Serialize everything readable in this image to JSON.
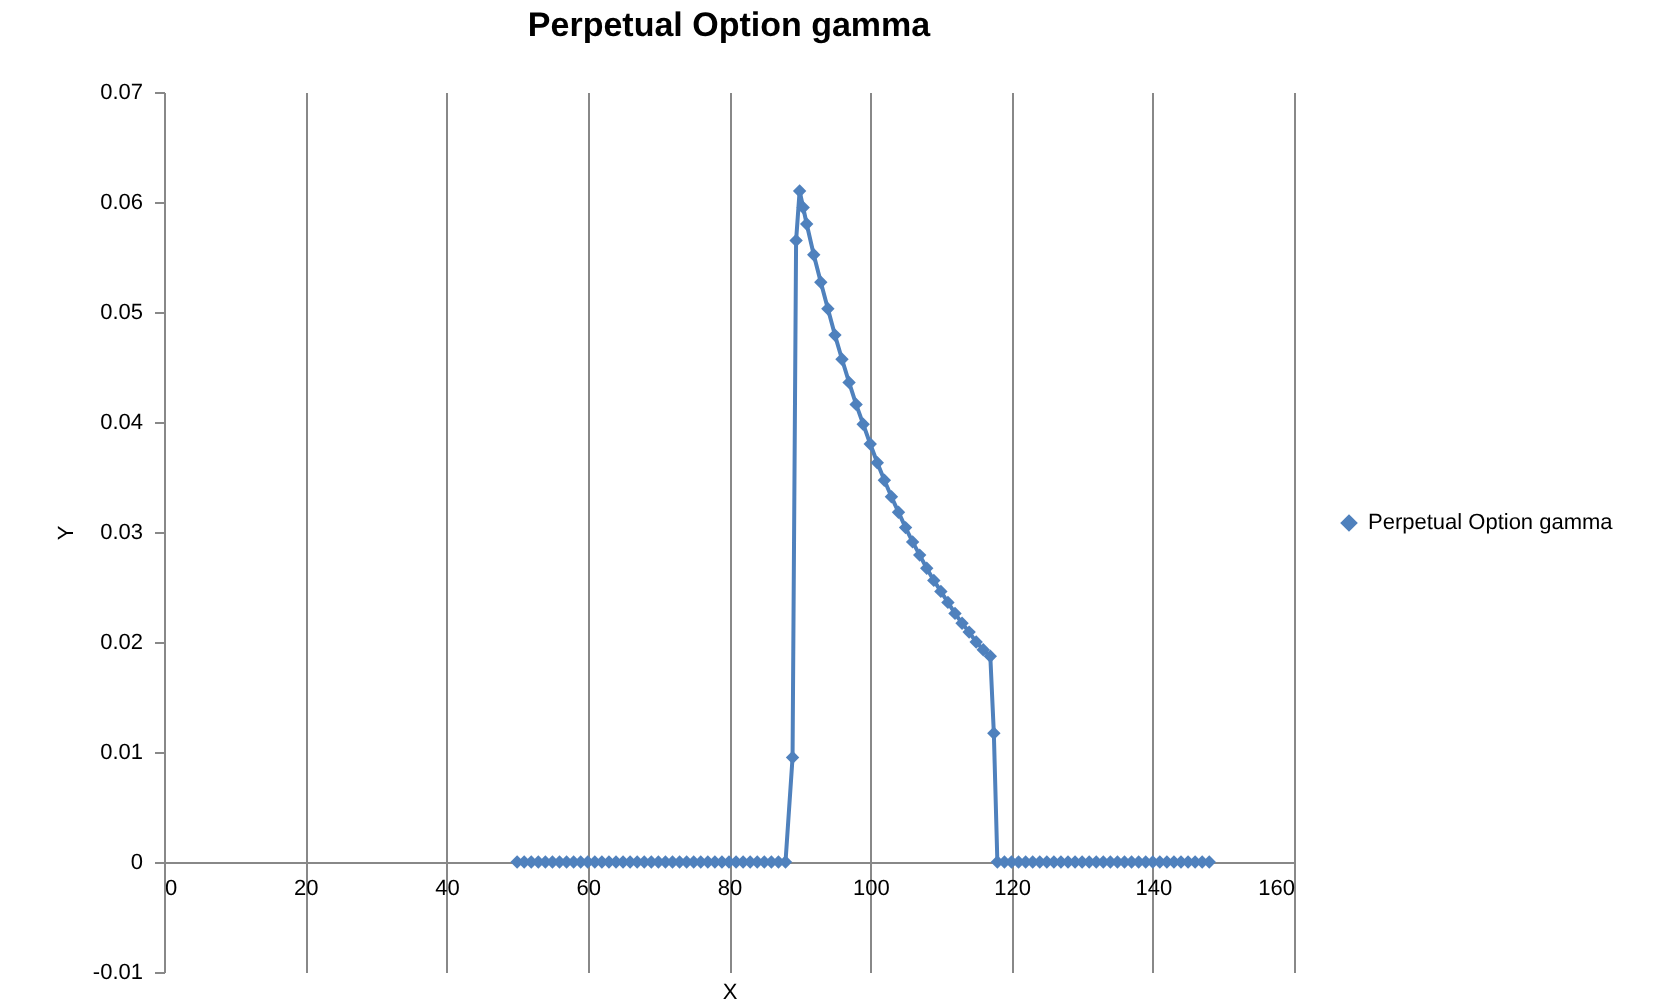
{
  "chart_data": {
    "type": "line",
    "title": "Perpetual Option gamma",
    "xlabel": "X",
    "ylabel": "Y",
    "x": [
      50,
      51,
      52,
      53,
      54,
      55,
      56,
      57,
      58,
      59,
      60,
      61,
      62,
      63,
      64,
      65,
      66,
      67,
      68,
      69,
      70,
      71,
      72,
      73,
      74,
      75,
      76,
      77,
      78,
      79,
      80,
      81,
      82,
      83,
      84,
      85,
      86,
      87,
      88,
      89,
      89.5,
      90,
      90.5,
      91,
      92,
      93,
      94,
      95,
      96,
      97,
      98,
      99,
      100,
      101,
      102,
      103,
      104,
      105,
      106,
      107,
      108,
      109,
      110,
      111,
      112,
      113,
      114,
      115,
      116,
      117,
      117.5,
      118,
      119,
      120,
      121,
      122,
      123,
      124,
      125,
      126,
      127,
      128,
      129,
      130,
      131,
      132,
      133,
      134,
      135,
      136,
      137,
      138,
      139,
      140,
      141,
      142,
      143,
      144,
      145,
      146,
      147,
      148
    ],
    "series": [
      {
        "name": "Perpetual Option gamma",
        "color": "#4f81bd",
        "values": [
          0,
          0,
          0,
          0,
          0,
          0,
          0,
          0,
          0,
          0,
          0,
          0,
          0,
          0,
          0,
          0,
          0,
          0,
          0,
          0,
          0,
          0,
          0,
          0,
          0,
          0,
          0,
          0,
          0,
          0,
          0,
          0,
          0,
          0,
          0,
          0,
          0,
          0,
          0,
          0.0095,
          0.0565,
          0.061,
          0.0595,
          0.058,
          0.0552,
          0.0527,
          0.0503,
          0.0479,
          0.0457,
          0.0436,
          0.0416,
          0.0398,
          0.038,
          0.0363,
          0.0347,
          0.0332,
          0.0318,
          0.0304,
          0.0291,
          0.0279,
          0.0267,
          0.0256,
          0.0246,
          0.0236,
          0.0226,
          0.0217,
          0.0209,
          0.02,
          0.0193,
          0.0187,
          0.0117,
          0,
          0,
          0,
          0,
          0,
          0,
          0,
          0,
          0,
          0,
          0,
          0,
          0,
          0,
          0,
          0,
          0,
          0,
          0,
          0,
          0,
          0,
          0,
          0,
          0,
          0,
          0,
          0,
          0,
          0,
          0
        ]
      }
    ],
    "xlim": [
      0,
      160
    ],
    "xticks": [
      0,
      20,
      40,
      60,
      80,
      100,
      120,
      140,
      160
    ],
    "ylim": [
      -0.01,
      0.07
    ],
    "yticks": [
      -0.01,
      0,
      0.01,
      0.02,
      0.03,
      0.04,
      0.05,
      0.06,
      0.07
    ],
    "grid": "x",
    "legend": "right",
    "marker": "diamond",
    "line_style": "solid"
  }
}
